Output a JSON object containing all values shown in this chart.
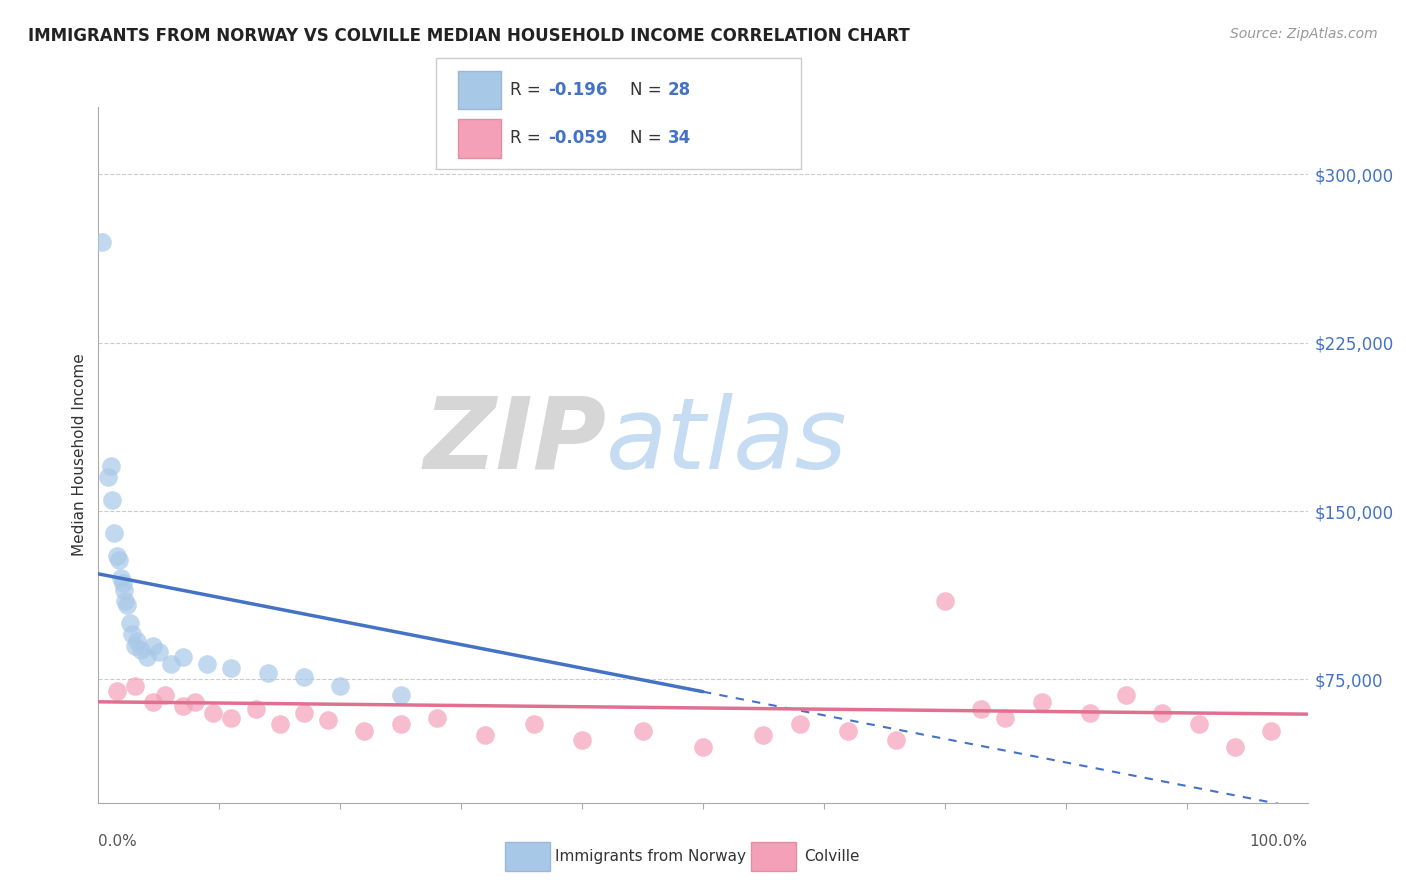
{
  "title": "IMMIGRANTS FROM NORWAY VS COLVILLE MEDIAN HOUSEHOLD INCOME CORRELATION CHART",
  "source": "Source: ZipAtlas.com",
  "ylabel": "Median Household Income",
  "yticks": [
    75000,
    150000,
    225000,
    300000
  ],
  "ytick_labels": [
    "$75,000",
    "$150,000",
    "$225,000",
    "$300,000"
  ],
  "xlim": [
    0.0,
    100.0
  ],
  "ylim": [
    20000,
    330000
  ],
  "watermark_zip": "ZIP",
  "watermark_atlas": "atlas",
  "legend_label1": "Immigrants from Norway",
  "legend_label2": "Colville",
  "blue_scatter_color": "#a8c8e8",
  "pink_scatter_color": "#f4a0b8",
  "blue_line_color": "#4472c4",
  "pink_line_color": "#e07090",
  "norway_x": [
    0.3,
    0.8,
    1.0,
    1.1,
    1.3,
    1.5,
    1.7,
    1.9,
    2.0,
    2.1,
    2.2,
    2.4,
    2.6,
    2.8,
    3.0,
    3.2,
    3.5,
    4.0,
    4.5,
    5.0,
    6.0,
    7.0,
    9.0,
    11.0,
    14.0,
    17.0,
    20.0,
    25.0
  ],
  "norway_y": [
    270000,
    165000,
    170000,
    155000,
    140000,
    130000,
    128000,
    120000,
    118000,
    115000,
    110000,
    108000,
    100000,
    95000,
    90000,
    92000,
    88000,
    85000,
    90000,
    87000,
    82000,
    85000,
    82000,
    80000,
    78000,
    76000,
    72000,
    68000
  ],
  "colville_x": [
    1.5,
    3.0,
    4.5,
    5.5,
    7.0,
    8.0,
    9.5,
    11.0,
    13.0,
    15.0,
    17.0,
    19.0,
    22.0,
    25.0,
    28.0,
    32.0,
    36.0,
    40.0,
    45.0,
    50.0,
    55.0,
    58.0,
    62.0,
    66.0,
    70.0,
    73.0,
    75.0,
    78.0,
    82.0,
    85.0,
    88.0,
    91.0,
    94.0,
    97.0
  ],
  "colville_y": [
    70000,
    72000,
    65000,
    68000,
    63000,
    65000,
    60000,
    58000,
    62000,
    55000,
    60000,
    57000,
    52000,
    55000,
    58000,
    50000,
    55000,
    48000,
    52000,
    45000,
    50000,
    55000,
    52000,
    48000,
    110000,
    62000,
    58000,
    65000,
    60000,
    68000,
    60000,
    55000,
    45000,
    52000
  ],
  "blue_reg_x_solid_end": 50,
  "norway_reg_intercept": 122000,
  "norway_reg_slope": -1050,
  "colville_reg_intercept": 65000,
  "colville_reg_slope": -55
}
